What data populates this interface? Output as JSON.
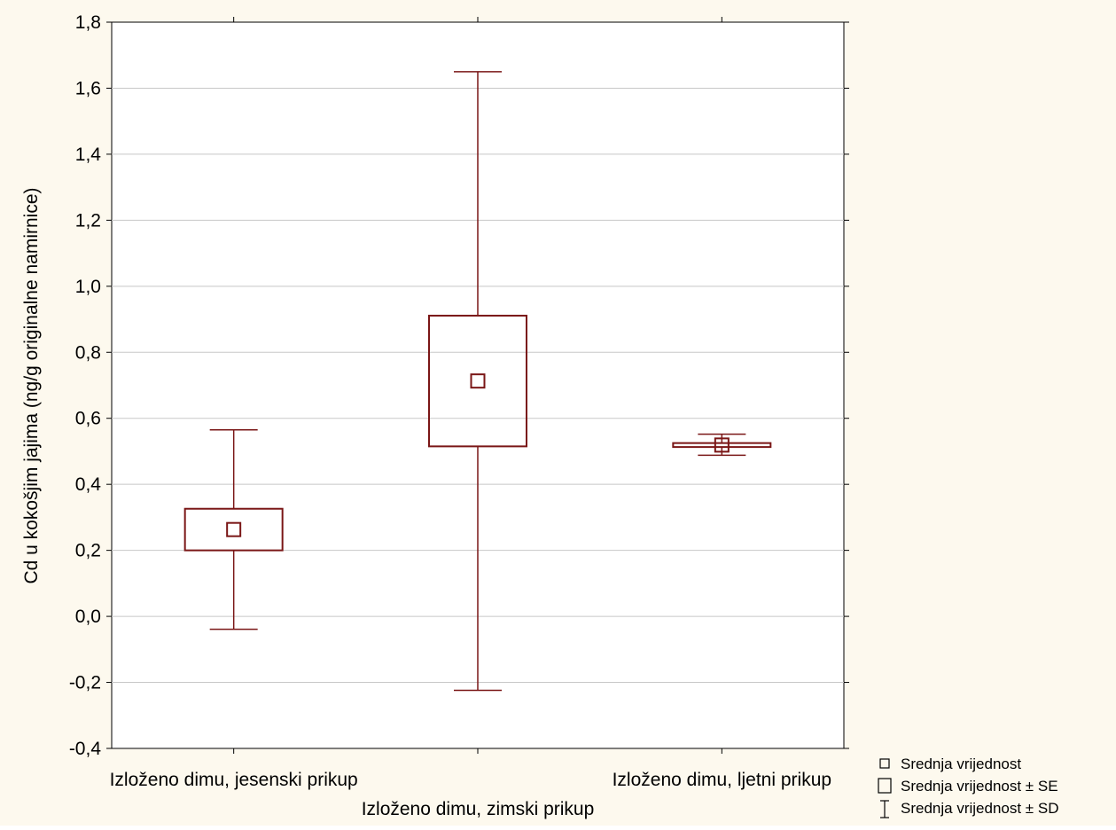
{
  "chart_data": {
    "type": "box",
    "ylabel": "Cd u kokošjim jajima (ng/g originalne namirnice)",
    "xlabel": "",
    "ylim": [
      -0.4,
      1.8
    ],
    "ytick_values": [
      -0.4,
      -0.2,
      0.0,
      0.2,
      0.4,
      0.6,
      0.8,
      1.0,
      1.2,
      1.4,
      1.6,
      1.8
    ],
    "ytick_labels": [
      "-0,4",
      "-0,2",
      "0,0",
      "0,2",
      "0,4",
      "0,6",
      "0,8",
      "1,0",
      "1,2",
      "1,4",
      "1,6",
      "1,8"
    ],
    "grid": "horizontal",
    "categories": [
      "Izloženo dimu, jesenski prikup",
      "Izloženo dimu, zimski prikup",
      "Izloženo dimu, ljetni prikup"
    ],
    "series": [
      {
        "mean": [
          0.263,
          0.713,
          0.519
        ],
        "se_low": [
          0.2,
          0.515,
          0.513
        ],
        "se_high": [
          0.326,
          0.911,
          0.525
        ],
        "sd_low": [
          -0.039,
          -0.224,
          0.488
        ],
        "sd_high": [
          0.565,
          1.65,
          0.552
        ]
      }
    ],
    "legend": {
      "position": "bottom-right",
      "items": [
        "Srednja vrijednost",
        "Srednja vrijednost ± SE",
        "Srednja vrijednost ± SD"
      ]
    },
    "colors": {
      "mark": "#7a1616",
      "background": "#fdf9ee",
      "plot_background": "#ffffff",
      "grid": "#c8c8c8"
    }
  }
}
